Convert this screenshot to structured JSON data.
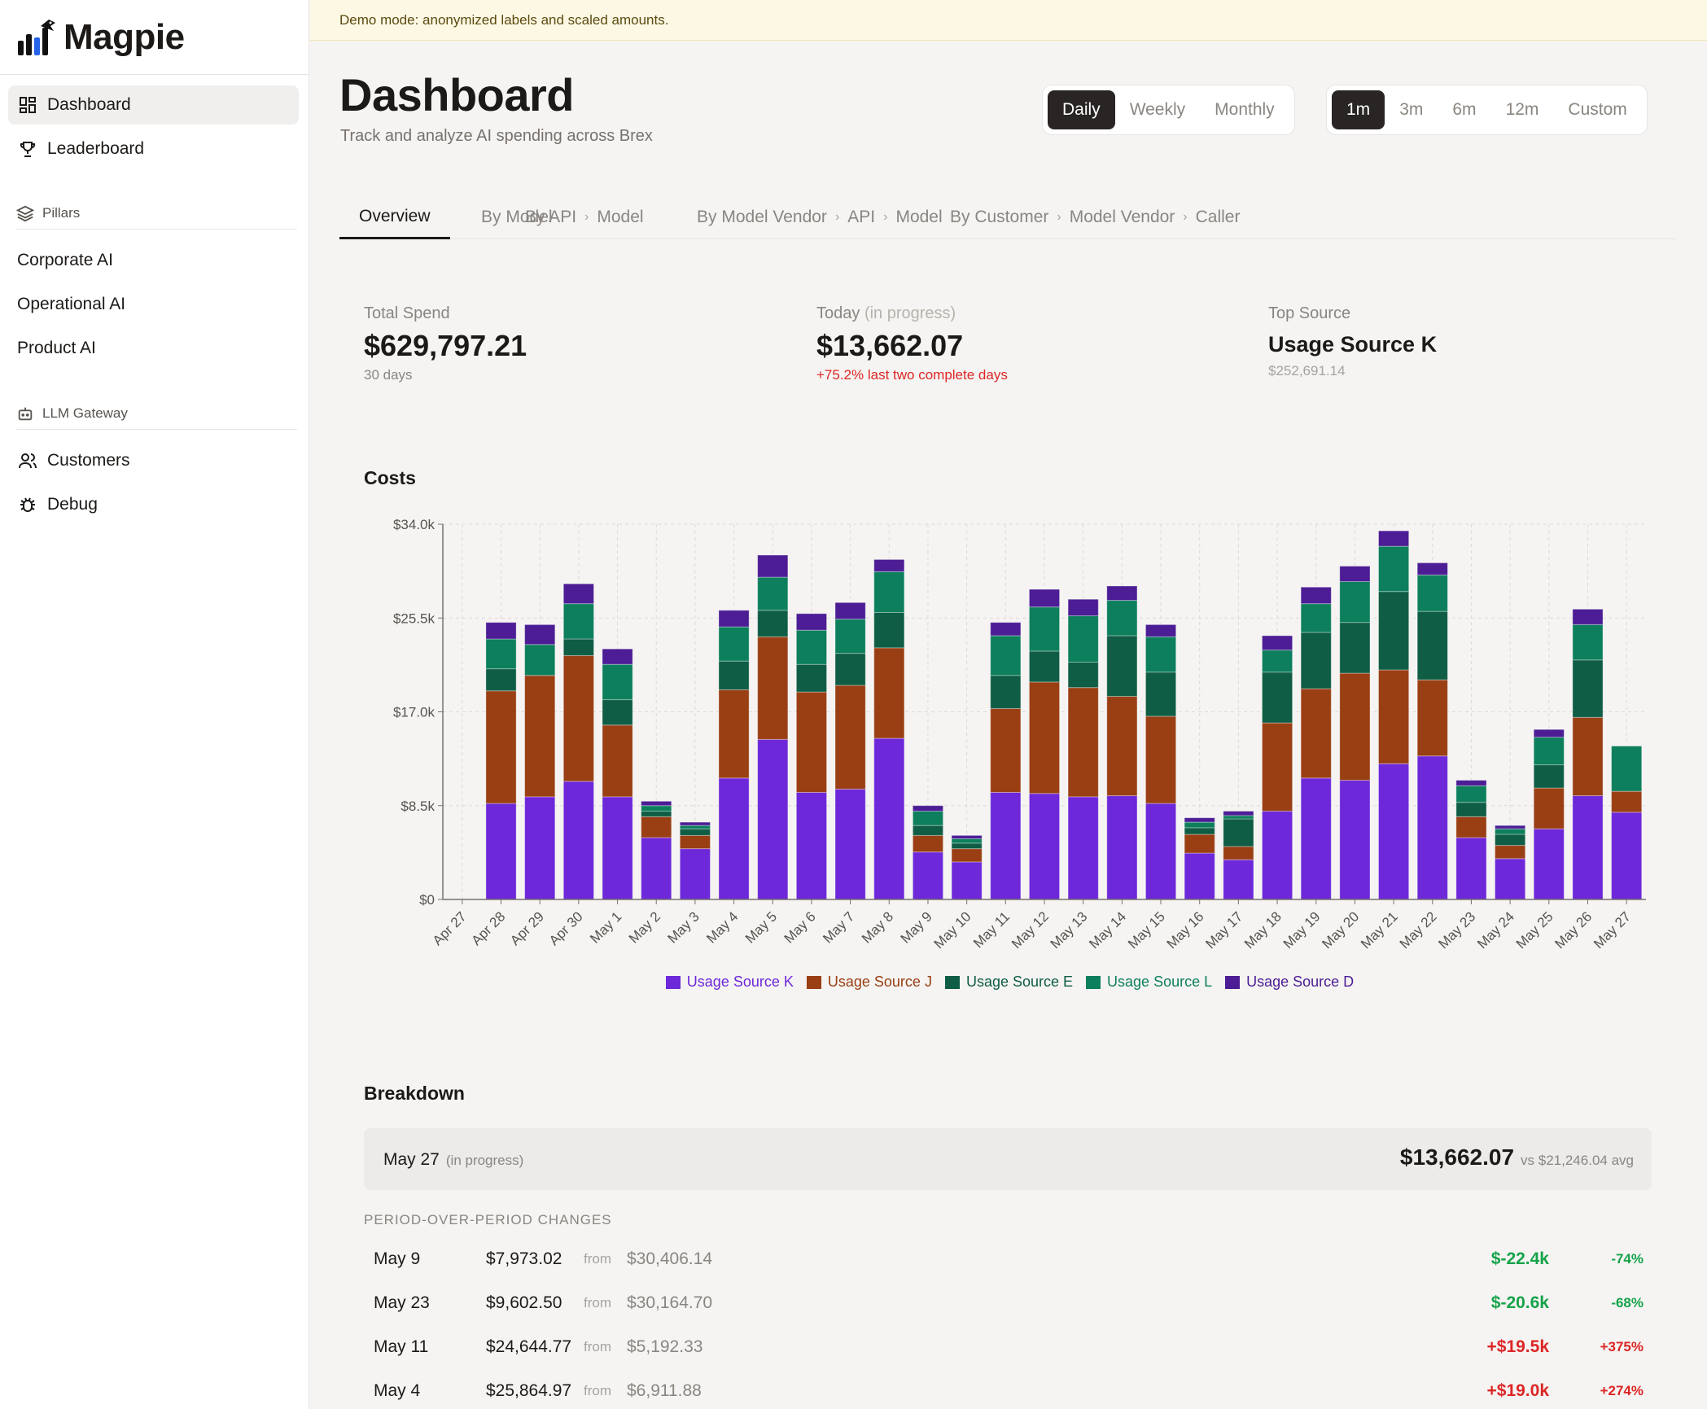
{
  "app": {
    "name": "Magpie"
  },
  "banner": "Demo mode: anonymized labels and scaled amounts.",
  "sidebar": {
    "dashboard": "Dashboard",
    "leaderboard": "Leaderboard",
    "pillars_label": "Pillars",
    "pillars": [
      "Corporate AI",
      "Operational AI",
      "Product AI"
    ],
    "gateway_label": "LLM Gateway",
    "customers": "Customers",
    "debug": "Debug"
  },
  "header": {
    "title": "Dashboard",
    "subtitle": "Track and analyze AI spending across Brex"
  },
  "granularity": {
    "options": [
      "Daily",
      "Weekly",
      "Monthly"
    ],
    "selected": "Daily"
  },
  "range": {
    "options": [
      "1m",
      "3m",
      "6m",
      "12m",
      "Custom"
    ],
    "selected": "1m"
  },
  "tabs": {
    "overview": "Overview",
    "by_model": "By Model",
    "by_api": [
      "By API",
      "Model"
    ],
    "by_vendor": [
      "By Model Vendor",
      "API",
      "Model"
    ],
    "by_customer": [
      "By Customer",
      "Model Vendor",
      "Caller"
    ]
  },
  "kpis": {
    "total": {
      "label": "Total Spend",
      "value": "$629,797.21",
      "note": "30 days"
    },
    "today": {
      "label": "Today",
      "label_muted": "(in progress)",
      "value": "$13,662.07",
      "note": "+75.2% last two complete days"
    },
    "top": {
      "label": "Top Source",
      "value": "Usage Source K",
      "note": "$252,691.14"
    }
  },
  "chart_title": "Costs",
  "chart_data": {
    "type": "bar",
    "stacked": true,
    "categories": [
      "Apr 27",
      "Apr 28",
      "Apr 29",
      "Apr 30",
      "May 1",
      "May 2",
      "May 3",
      "May 4",
      "May 5",
      "May 6",
      "May 7",
      "May 8",
      "May 9",
      "May 10",
      "May 11",
      "May 12",
      "May 13",
      "May 14",
      "May 15",
      "May 16",
      "May 17",
      "May 18",
      "May 19",
      "May 20",
      "May 21",
      "May 22",
      "May 23",
      "May 24",
      "May 25",
      "May 26",
      "May 27"
    ],
    "series": [
      {
        "name": "Usage Source K",
        "color": "#6d28d9",
        "values": [
          0,
          8700,
          9300,
          10700,
          9300,
          5600,
          4600,
          11000,
          14500,
          9700,
          10000,
          14600,
          4300,
          3400,
          9700,
          9600,
          9300,
          9400,
          8700,
          4200,
          3600,
          8000,
          11000,
          10800,
          12300,
          13000,
          5600,
          3700,
          6400,
          9400,
          7900
        ]
      },
      {
        "name": "Usage Source J",
        "color": "#9a3f14",
        "values": [
          0,
          10200,
          11000,
          11400,
          6500,
          1900,
          1200,
          8000,
          9300,
          9100,
          9400,
          8200,
          1500,
          1200,
          7600,
          10100,
          9900,
          9000,
          7900,
          1700,
          1200,
          8000,
          8100,
          9700,
          8500,
          6900,
          1900,
          1200,
          3700,
          7100,
          1900
        ]
      },
      {
        "name": "Usage Source E",
        "color": "#0f5d45",
        "values": [
          0,
          2000,
          0,
          1500,
          2300,
          500,
          600,
          2600,
          2400,
          2500,
          2900,
          3200,
          900,
          500,
          3000,
          2800,
          2300,
          5500,
          4000,
          600,
          2500,
          4600,
          5100,
          4600,
          7100,
          6200,
          1300,
          1000,
          2100,
          5200,
          0
        ]
      },
      {
        "name": "Usage Source L",
        "color": "#0d7f5d",
        "values": [
          0,
          2700,
          2800,
          3200,
          3200,
          500,
          300,
          3100,
          3000,
          3100,
          3100,
          3700,
          1300,
          400,
          3600,
          4000,
          4200,
          3200,
          3200,
          500,
          300,
          2000,
          2600,
          3700,
          4100,
          3300,
          1500,
          500,
          2500,
          3200,
          4100
        ]
      },
      {
        "name": "Usage Source D",
        "color": "#4c1d95",
        "values": [
          0,
          1500,
          1800,
          1800,
          1400,
          400,
          300,
          1500,
          2000,
          1500,
          1500,
          1100,
          500,
          300,
          1200,
          1600,
          1500,
          1300,
          1100,
          400,
          400,
          1300,
          1500,
          1400,
          1400,
          1100,
          500,
          300,
          700,
          1400,
          0
        ]
      }
    ],
    "yticks": [
      "$0",
      "$8.5k",
      "$17.0k",
      "$25.5k",
      "$34.0k"
    ],
    "ylim": [
      0,
      34000
    ],
    "grid": true,
    "legend": "bottom"
  },
  "breakdown": {
    "title": "Breakdown",
    "date": "May 27",
    "date_note": "(in progress)",
    "amount": "$13,662.07",
    "vs": "vs $21,246.04 avg",
    "pop_label": "PERIOD-OVER-PERIOD CHANGES",
    "from_word": "from",
    "rows": [
      {
        "date": "May 9",
        "value": "$7,973.02",
        "prev": "$30,406.14",
        "delta": "$-22.4k",
        "pct": "-74%",
        "dir": "down"
      },
      {
        "date": "May 23",
        "value": "$9,602.50",
        "prev": "$30,164.70",
        "delta": "$-20.6k",
        "pct": "-68%",
        "dir": "down"
      },
      {
        "date": "May 11",
        "value": "$24,644.77",
        "prev": "$5,192.33",
        "delta": "+$19.5k",
        "pct": "+375%",
        "dir": "up"
      },
      {
        "date": "May 4",
        "value": "$25,864.97",
        "prev": "$6,911.88",
        "delta": "+$19.0k",
        "pct": "+274%",
        "dir": "up"
      }
    ]
  }
}
